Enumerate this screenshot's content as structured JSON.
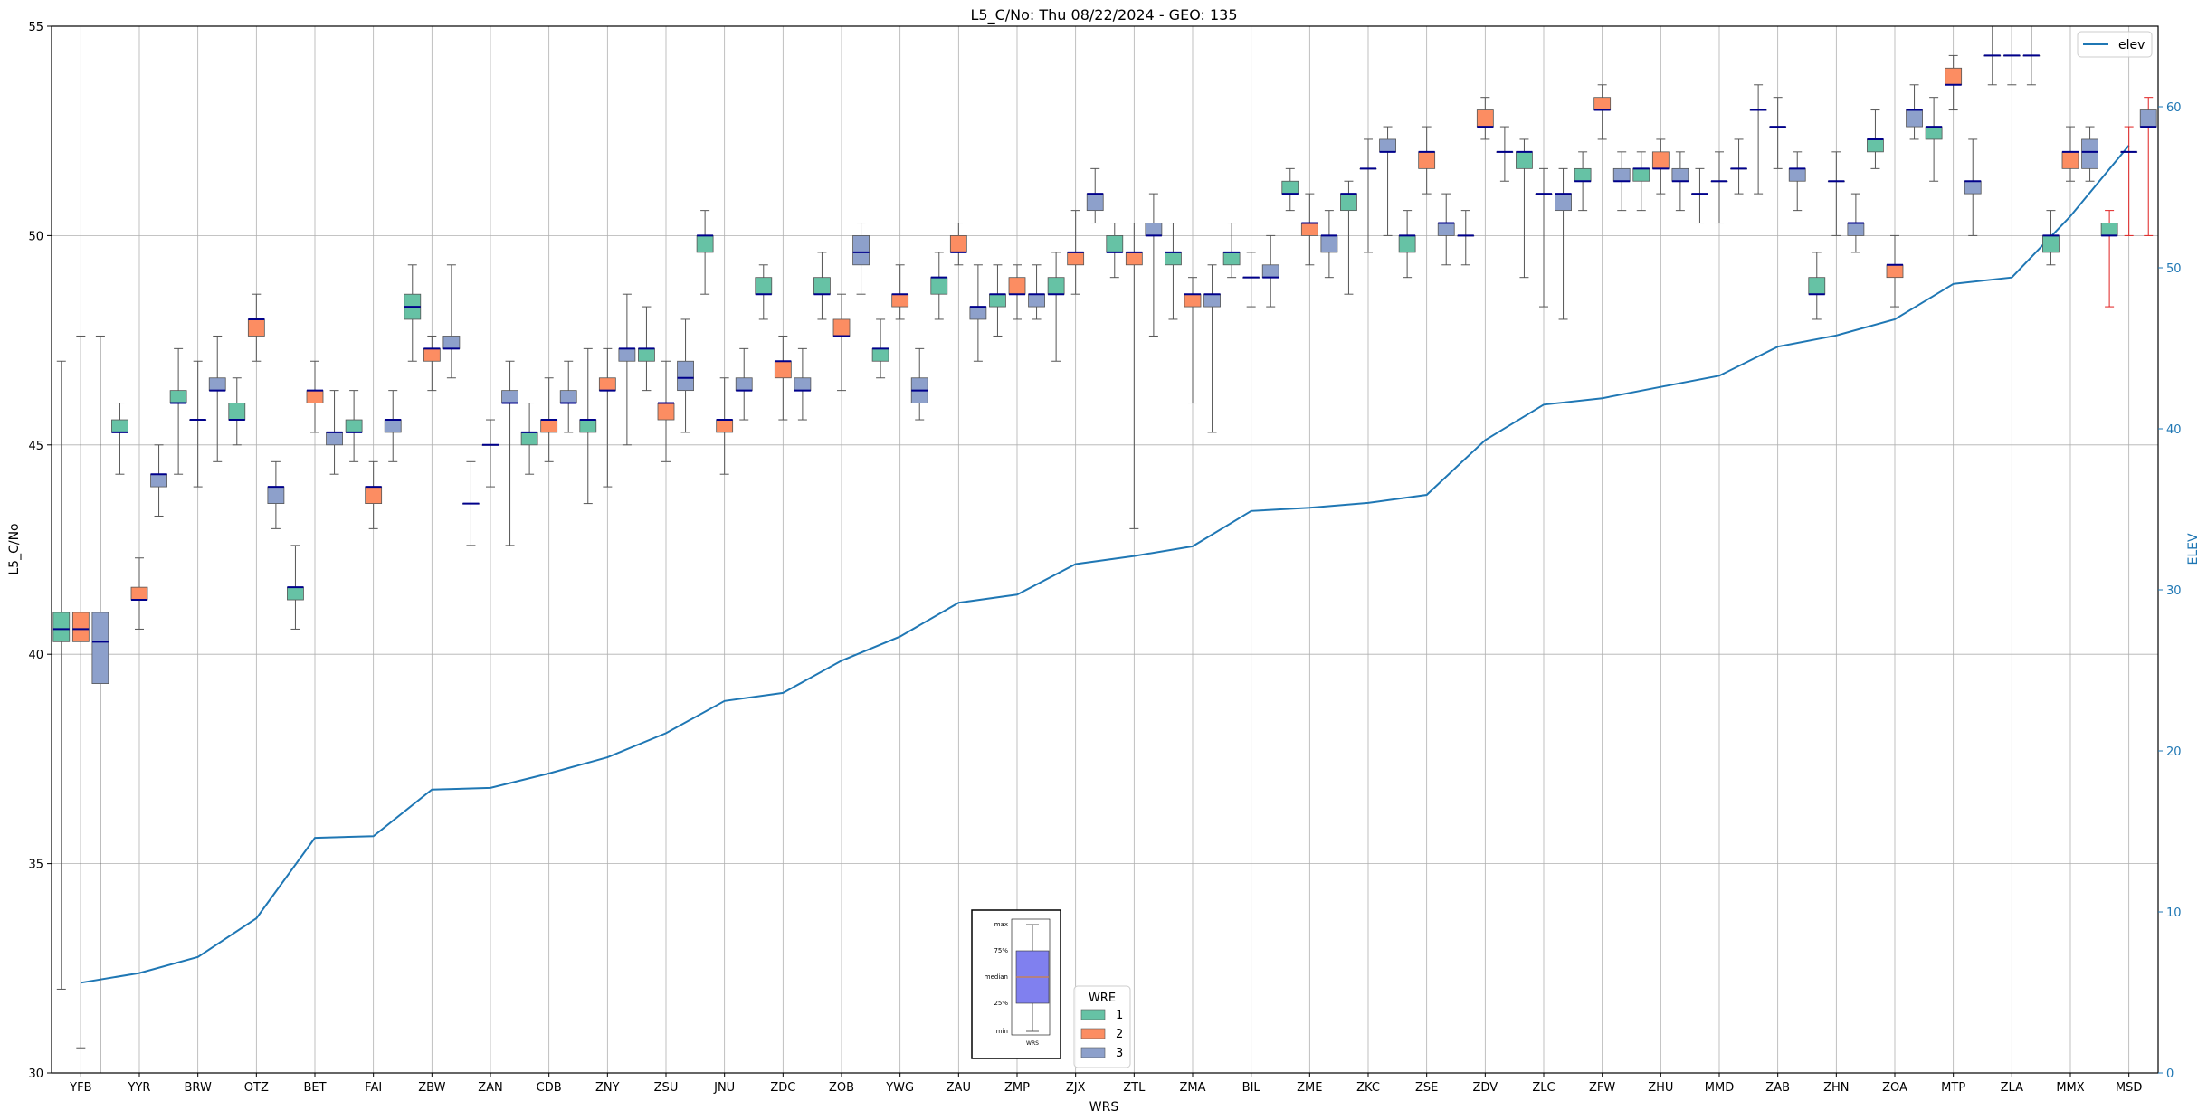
{
  "chart_data": {
    "type": "box",
    "title": "L5_C/No: Thu 08/22/2024 - GEO: 135",
    "xlabel": "WRS",
    "ylabel": "L5_C/No",
    "y2label": "ELEV",
    "ylim": [
      30,
      55
    ],
    "y2lim": [
      0,
      65
    ],
    "yticks": [
      "30",
      "35",
      "40",
      "45",
      "50",
      "55"
    ],
    "y2ticks": [
      "0",
      "10",
      "20",
      "30",
      "40",
      "50",
      "60"
    ],
    "grid": true,
    "categories": [
      "YFB",
      "YYR",
      "BRW",
      "OTZ",
      "BET",
      "FAI",
      "ZBW",
      "ZAN",
      "CDB",
      "ZNY",
      "ZSU",
      "JNU",
      "ZDC",
      "ZOB",
      "YWG",
      "ZAU",
      "ZMP",
      "ZJX",
      "ZTL",
      "ZMA",
      "BIL",
      "ZME",
      "ZKC",
      "ZSE",
      "ZDV",
      "ZLC",
      "ZFW",
      "ZHU",
      "MMD",
      "ZAB",
      "ZHN",
      "ZOA",
      "MTP",
      "ZLA",
      "MMX",
      "MSD"
    ],
    "colors": {
      "wre1": "#66c2a5",
      "wre2": "#fc8d62",
      "wre3": "#8da0cb",
      "median": "#00008b",
      "whisker": "#555555",
      "whisker_msd": "#e02020",
      "elev": "#1f77b4"
    },
    "legend_wre": {
      "title": "WRE",
      "entries": [
        "1",
        "2",
        "3"
      ],
      "placement": "bottom-center"
    },
    "legend_elev": {
      "label": "elev",
      "placement": "top-right"
    },
    "inset": {
      "labels": [
        "max",
        "75%",
        "median",
        "25%",
        "min"
      ],
      "xlabel": "WRS"
    },
    "boxes": [
      [
        0,
        1,
        32.0,
        40.3,
        40.6,
        41.0,
        47.0
      ],
      [
        0,
        2,
        30.6,
        40.3,
        40.6,
        41.0,
        47.6
      ],
      [
        0,
        3,
        30.0,
        39.3,
        40.3,
        41.0,
        47.6
      ],
      [
        1,
        1,
        44.3,
        45.3,
        45.3,
        45.6,
        46.0
      ],
      [
        1,
        2,
        40.6,
        41.3,
        41.3,
        41.6,
        42.3
      ],
      [
        1,
        3,
        43.3,
        44.0,
        44.3,
        44.3,
        45.0
      ],
      [
        2,
        1,
        44.3,
        46.0,
        46.0,
        46.3,
        47.3
      ],
      [
        2,
        2,
        44.0,
        45.6,
        45.6,
        45.6,
        47.0
      ],
      [
        2,
        3,
        44.6,
        46.3,
        46.3,
        46.6,
        47.6
      ],
      [
        3,
        1,
        45.0,
        45.6,
        45.6,
        46.0,
        46.6
      ],
      [
        3,
        2,
        47.0,
        47.6,
        48.0,
        48.0,
        48.6
      ],
      [
        3,
        3,
        43.0,
        43.6,
        44.0,
        44.0,
        44.6
      ],
      [
        4,
        1,
        40.6,
        41.3,
        41.6,
        41.6,
        42.6
      ],
      [
        4,
        2,
        45.3,
        46.0,
        46.3,
        46.3,
        47.0
      ],
      [
        4,
        3,
        44.3,
        45.0,
        45.3,
        45.3,
        46.3
      ],
      [
        5,
        1,
        44.6,
        45.3,
        45.3,
        45.6,
        46.3
      ],
      [
        5,
        2,
        43.0,
        43.6,
        44.0,
        44.0,
        44.6
      ],
      [
        5,
        3,
        44.6,
        45.3,
        45.6,
        45.6,
        46.3
      ],
      [
        6,
        1,
        47.0,
        48.0,
        48.3,
        48.6,
        49.3
      ],
      [
        6,
        2,
        46.3,
        47.0,
        47.3,
        47.3,
        47.6
      ],
      [
        6,
        3,
        46.6,
        47.3,
        47.3,
        47.6,
        49.3
      ],
      [
        7,
        1,
        42.6,
        43.6,
        43.6,
        43.6,
        44.6
      ],
      [
        7,
        2,
        44.0,
        45.0,
        45.0,
        45.0,
        45.6
      ],
      [
        7,
        3,
        42.6,
        46.0,
        46.0,
        46.3,
        47.0
      ],
      [
        8,
        1,
        44.3,
        45.0,
        45.3,
        45.3,
        46.0
      ],
      [
        8,
        2,
        44.6,
        45.3,
        45.6,
        45.6,
        46.6
      ],
      [
        8,
        3,
        45.3,
        46.0,
        46.0,
        46.3,
        47.0
      ],
      [
        9,
        1,
        43.6,
        45.3,
        45.6,
        45.6,
        47.3
      ],
      [
        9,
        2,
        44.0,
        46.3,
        46.3,
        46.6,
        47.3
      ],
      [
        9,
        3,
        45.0,
        47.0,
        47.3,
        47.3,
        48.6
      ],
      [
        10,
        1,
        46.3,
        47.0,
        47.3,
        47.3,
        48.3
      ],
      [
        10,
        2,
        44.6,
        45.6,
        46.0,
        46.0,
        47.0
      ],
      [
        10,
        3,
        45.3,
        46.3,
        46.6,
        47.0,
        48.0
      ],
      [
        11,
        1,
        48.6,
        49.6,
        50.0,
        50.0,
        50.6
      ],
      [
        11,
        2,
        44.3,
        45.3,
        45.6,
        45.6,
        46.6
      ],
      [
        11,
        3,
        45.6,
        46.3,
        46.3,
        46.6,
        47.3
      ],
      [
        12,
        1,
        48.0,
        48.6,
        48.6,
        49.0,
        49.3
      ],
      [
        12,
        2,
        45.6,
        46.6,
        47.0,
        47.0,
        47.6
      ],
      [
        12,
        3,
        45.6,
        46.3,
        46.3,
        46.6,
        47.3
      ],
      [
        13,
        1,
        48.0,
        48.6,
        48.6,
        49.0,
        49.6
      ],
      [
        13,
        2,
        46.3,
        47.6,
        47.6,
        48.0,
        48.6
      ],
      [
        13,
        3,
        48.6,
        49.3,
        49.6,
        50.0,
        50.3
      ],
      [
        14,
        1,
        46.6,
        47.0,
        47.3,
        47.3,
        48.0
      ],
      [
        14,
        2,
        48.0,
        48.3,
        48.6,
        48.6,
        49.3
      ],
      [
        14,
        3,
        45.6,
        46.0,
        46.3,
        46.6,
        47.3
      ],
      [
        15,
        1,
        48.0,
        48.6,
        49.0,
        49.0,
        49.6
      ],
      [
        15,
        2,
        49.3,
        49.6,
        49.6,
        50.0,
        50.3
      ],
      [
        15,
        3,
        47.0,
        48.0,
        48.3,
        48.3,
        49.3
      ],
      [
        16,
        1,
        47.6,
        48.3,
        48.6,
        48.6,
        49.3
      ],
      [
        16,
        2,
        48.0,
        48.6,
        48.6,
        49.0,
        49.3
      ],
      [
        16,
        3,
        48.0,
        48.3,
        48.6,
        48.6,
        49.3
      ],
      [
        17,
        1,
        47.0,
        48.6,
        48.6,
        49.0,
        49.6
      ],
      [
        17,
        2,
        48.6,
        49.3,
        49.6,
        49.6,
        50.6
      ],
      [
        17,
        3,
        50.3,
        50.6,
        51.0,
        51.0,
        51.6
      ],
      [
        18,
        1,
        49.0,
        49.6,
        49.6,
        50.0,
        50.3
      ],
      [
        18,
        2,
        43.0,
        49.3,
        49.6,
        49.6,
        50.3
      ],
      [
        18,
        3,
        47.6,
        50.0,
        50.0,
        50.3,
        51.0
      ],
      [
        19,
        1,
        48.0,
        49.3,
        49.6,
        49.6,
        50.3
      ],
      [
        19,
        2,
        46.0,
        48.3,
        48.6,
        48.6,
        49.0
      ],
      [
        19,
        3,
        45.3,
        48.3,
        48.6,
        48.6,
        49.3
      ],
      [
        20,
        1,
        49.0,
        49.3,
        49.6,
        49.6,
        50.3
      ],
      [
        20,
        2,
        48.3,
        49.0,
        49.0,
        49.0,
        49.6
      ],
      [
        20,
        3,
        48.3,
        49.0,
        49.0,
        49.3,
        50.0
      ],
      [
        21,
        1,
        50.6,
        51.0,
        51.0,
        51.3,
        51.6
      ],
      [
        21,
        2,
        49.3,
        50.0,
        50.3,
        50.3,
        51.0
      ],
      [
        21,
        3,
        49.0,
        49.6,
        50.0,
        50.0,
        50.6
      ],
      [
        22,
        1,
        48.6,
        50.6,
        51.0,
        51.0,
        51.3
      ],
      [
        22,
        2,
        49.6,
        51.6,
        51.6,
        51.6,
        52.3
      ],
      [
        22,
        3,
        50.0,
        52.0,
        52.0,
        52.3,
        52.6
      ],
      [
        23,
        1,
        49.0,
        49.6,
        50.0,
        50.0,
        50.6
      ],
      [
        23,
        2,
        51.0,
        51.6,
        52.0,
        52.0,
        52.6
      ],
      [
        23,
        3,
        49.3,
        50.0,
        50.3,
        50.3,
        51.0
      ],
      [
        24,
        1,
        49.3,
        50.0,
        50.0,
        50.0,
        50.6
      ],
      [
        24,
        2,
        52.3,
        52.6,
        52.6,
        53.0,
        53.3
      ],
      [
        24,
        3,
        51.3,
        52.0,
        52.0,
        52.0,
        52.6
      ],
      [
        25,
        1,
        49.0,
        51.6,
        52.0,
        52.0,
        52.3
      ],
      [
        25,
        2,
        48.3,
        51.0,
        51.0,
        51.0,
        51.6
      ],
      [
        25,
        3,
        48.0,
        50.6,
        51.0,
        51.0,
        51.6
      ],
      [
        26,
        1,
        50.6,
        51.3,
        51.3,
        51.6,
        52.0
      ],
      [
        26,
        2,
        52.3,
        53.0,
        53.0,
        53.3,
        53.6
      ],
      [
        26,
        3,
        50.6,
        51.3,
        51.3,
        51.6,
        52.0
      ],
      [
        27,
        1,
        50.6,
        51.3,
        51.6,
        51.6,
        52.0
      ],
      [
        27,
        2,
        51.0,
        51.6,
        51.6,
        52.0,
        52.3
      ],
      [
        27,
        3,
        50.6,
        51.3,
        51.3,
        51.6,
        52.0
      ],
      [
        28,
        1,
        50.3,
        51.0,
        51.0,
        51.0,
        51.6
      ],
      [
        28,
        2,
        50.3,
        51.3,
        51.3,
        51.3,
        52.0
      ],
      [
        28,
        3,
        51.0,
        51.6,
        51.6,
        51.6,
        52.3
      ],
      [
        29,
        1,
        51.0,
        53.0,
        53.0,
        53.0,
        53.6
      ],
      [
        29,
        2,
        51.6,
        52.6,
        52.6,
        52.6,
        53.3
      ],
      [
        29,
        3,
        50.6,
        51.3,
        51.6,
        51.6,
        52.0
      ],
      [
        30,
        1,
        48.0,
        48.6,
        48.6,
        49.0,
        49.6
      ],
      [
        30,
        2,
        50.0,
        51.3,
        51.3,
        51.3,
        52.0
      ],
      [
        30,
        3,
        49.6,
        50.0,
        50.3,
        50.3,
        51.0
      ],
      [
        31,
        1,
        51.6,
        52.0,
        52.3,
        52.3,
        53.0
      ],
      [
        31,
        2,
        48.3,
        49.0,
        49.3,
        49.3,
        50.0
      ],
      [
        31,
        3,
        52.3,
        52.6,
        53.0,
        53.0,
        53.6
      ],
      [
        32,
        1,
        51.3,
        52.3,
        52.6,
        52.6,
        53.3
      ],
      [
        32,
        2,
        53.0,
        53.6,
        53.6,
        54.0,
        54.3
      ],
      [
        32,
        3,
        50.0,
        51.0,
        51.3,
        51.3,
        52.3
      ],
      [
        33,
        1,
        53.6,
        54.3,
        54.3,
        54.3,
        55.0
      ],
      [
        33,
        2,
        53.6,
        54.3,
        54.3,
        54.3,
        55.0
      ],
      [
        33,
        3,
        53.6,
        54.3,
        54.3,
        54.3,
        55.0
      ],
      [
        34,
        1,
        49.3,
        49.6,
        50.0,
        50.0,
        50.6
      ],
      [
        34,
        2,
        51.3,
        51.6,
        52.0,
        52.0,
        52.6
      ],
      [
        34,
        3,
        51.3,
        51.6,
        52.0,
        52.3,
        52.6
      ],
      [
        35,
        1,
        48.3,
        50.0,
        50.0,
        50.3,
        50.6
      ],
      [
        35,
        2,
        50.0,
        52.0,
        52.0,
        52.0,
        52.6
      ],
      [
        35,
        3,
        50.0,
        52.6,
        52.6,
        53.0,
        53.3
      ]
    ],
    "elev_series": {
      "name": "elev",
      "x": [
        "YFB",
        "YYR",
        "BRW",
        "OTZ",
        "BET",
        "FAI",
        "ZBW",
        "ZAN",
        "CDB",
        "ZNY",
        "ZSU",
        "JNU",
        "ZDC",
        "ZOB",
        "YWG",
        "ZAU",
        "ZMP",
        "ZJX",
        "ZTL",
        "ZMA",
        "BIL",
        "ZME",
        "ZKC",
        "ZSE",
        "ZDV",
        "ZLC",
        "ZFW",
        "ZHU",
        "MMD",
        "ZAB",
        "ZHN",
        "ZOA",
        "MTP",
        "ZLA",
        "MMX",
        "MSD"
      ],
      "values": [
        5.6,
        6.2,
        7.2,
        9.6,
        14.6,
        14.7,
        17.6,
        17.7,
        18.6,
        19.6,
        21.1,
        23.1,
        23.6,
        25.6,
        27.1,
        29.2,
        29.7,
        31.6,
        32.1,
        32.7,
        34.9,
        35.1,
        35.4,
        35.9,
        39.3,
        41.5,
        41.9,
        42.6,
        43.3,
        45.1,
        45.8,
        46.8,
        49.0,
        49.4,
        53.2,
        57.6
      ]
    }
  }
}
